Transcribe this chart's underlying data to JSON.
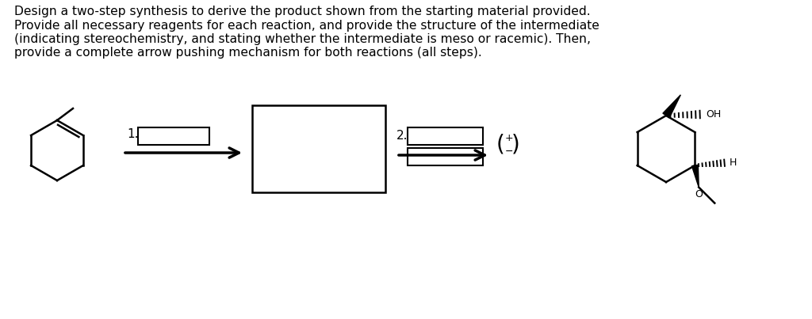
{
  "background_color": "#ffffff",
  "text_color": "#000000",
  "title_lines": [
    "Design a two-step synthesis to derive the product shown from the starting material provided.",
    "Provide all necessary reagents for each reaction, and provide the structure of the intermediate",
    "(indicating stereochemistry, and stating whether the intermediate is meso or racemic). Then,",
    "provide a complete arrow pushing mechanism for both reactions (all steps)."
  ],
  "title_fontsize": 11.2,
  "fig_width": 10.24,
  "fig_height": 4.03,
  "dpi": 100
}
